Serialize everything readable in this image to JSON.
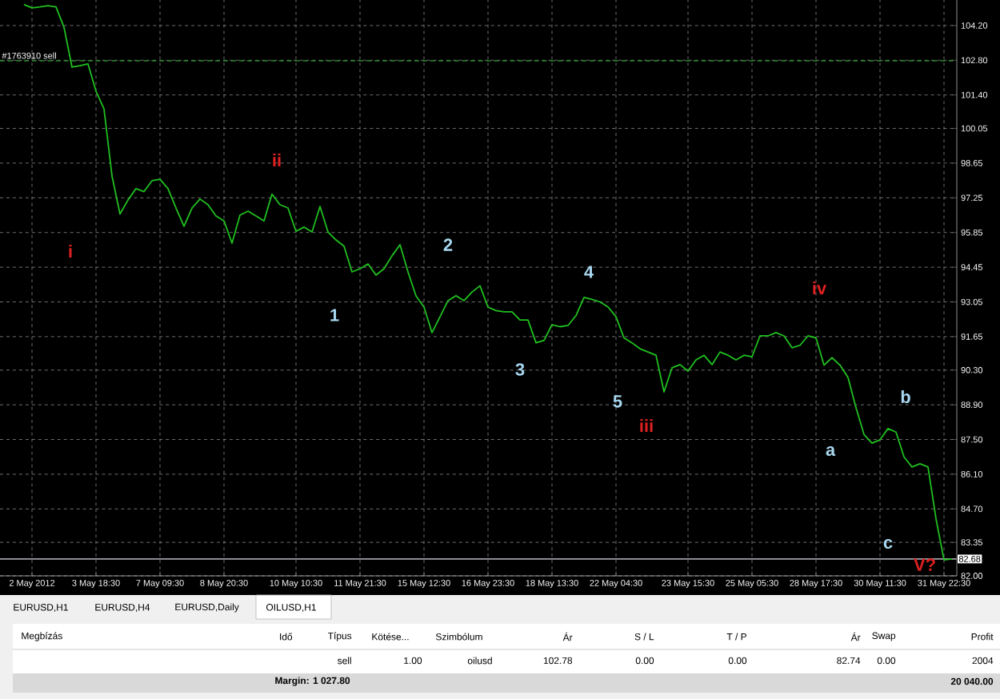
{
  "chart_data": {
    "type": "line",
    "categories": [
      null,
      "2 May 2012",
      null,
      null,
      null,
      null,
      null,
      null,
      null,
      "3 May 18:30",
      null,
      null,
      null,
      null,
      null,
      null,
      null,
      "7 May 09:30",
      null,
      null,
      null,
      null,
      null,
      null,
      null,
      "8 May 20:30",
      null,
      null,
      null,
      null,
      null,
      null,
      null,
      null,
      "10 May 10:30",
      null,
      null,
      null,
      null,
      null,
      null,
      null,
      "11 May 21:30",
      null,
      null,
      null,
      null,
      null,
      null,
      null,
      "15 May 12:30",
      null,
      null,
      null,
      null,
      null,
      null,
      null,
      "16 May 23:30",
      null,
      null,
      null,
      null,
      null,
      null,
      null,
      "18 May 13:30",
      null,
      null,
      null,
      null,
      null,
      null,
      null,
      "22 May 04:30",
      null,
      null,
      null,
      null,
      null,
      null,
      null,
      null,
      "23 May 15:30",
      null,
      null,
      null,
      null,
      null,
      null,
      null,
      "25 May 05:30",
      null,
      null,
      null,
      null,
      null,
      null,
      null,
      "28 May 17:30",
      null,
      null,
      null,
      null,
      null,
      null,
      null,
      "30 May 11:30",
      null,
      null,
      null,
      null,
      null,
      null,
      null,
      "31 May 22:30",
      null
    ],
    "series": [
      {
        "color": "#20c020",
        "values": [
          105.05,
          104.91,
          104.95,
          105.0,
          104.95,
          104.13,
          102.52,
          102.58,
          102.65,
          101.55,
          100.84,
          98.13,
          96.6,
          97.16,
          97.62,
          97.5,
          97.94,
          98.0,
          97.62,
          96.84,
          96.1,
          96.84,
          97.2,
          96.97,
          96.52,
          96.32,
          95.42,
          96.55,
          96.71,
          96.52,
          96.32,
          97.4,
          96.97,
          96.84,
          95.9,
          96.07,
          95.87,
          96.9,
          95.87,
          95.55,
          95.3,
          94.26,
          94.39,
          94.58,
          94.13,
          94.39,
          94.91,
          95.36,
          94.26,
          93.29,
          92.84,
          91.81,
          92.45,
          93.1,
          93.3,
          93.1,
          93.45,
          93.7,
          92.84,
          92.7,
          92.65,
          92.65,
          92.32,
          92.32,
          91.4,
          91.5,
          92.13,
          92.05,
          92.1,
          92.5,
          93.23,
          93.15,
          93.05,
          92.85,
          92.45,
          91.6,
          91.4,
          91.16,
          91.03,
          90.9,
          89.42,
          90.39,
          90.52,
          90.26,
          90.71,
          90.9,
          90.52,
          91.03,
          90.9,
          90.71,
          90.9,
          90.84,
          91.68,
          91.68,
          91.81,
          91.68,
          91.2,
          91.3,
          91.68,
          91.6,
          90.5,
          90.8,
          90.5,
          90.0,
          88.78,
          87.7,
          87.35,
          87.49,
          87.94,
          87.8,
          86.8,
          86.39,
          86.52,
          86.39,
          84.3,
          82.64,
          82.68
        ]
      }
    ],
    "ylim": [
      82.0,
      105.23
    ],
    "yticks": [
      {
        "value": 82.0,
        "label": "82.00"
      },
      {
        "value": 83.35,
        "label": "83.35"
      },
      {
        "value": 84.7,
        "label": "84.70"
      },
      {
        "value": 86.1,
        "label": "86.10"
      },
      {
        "value": 87.5,
        "label": "87.50"
      },
      {
        "value": 88.9,
        "label": "88.90"
      },
      {
        "value": 90.3,
        "label": "90.30"
      },
      {
        "value": 91.65,
        "label": "91.65"
      },
      {
        "value": 93.05,
        "label": "93.05"
      },
      {
        "value": 94.45,
        "label": "94.45"
      },
      {
        "value": 95.85,
        "label": "95.85"
      },
      {
        "value": 97.25,
        "label": "97.25"
      },
      {
        "value": 98.65,
        "label": "98.65"
      },
      {
        "value": 100.05,
        "label": "100.05"
      },
      {
        "value": 101.4,
        "label": "101.40"
      },
      {
        "value": 102.8,
        "label": "102.80"
      },
      {
        "value": 104.2,
        "label": "104.20"
      }
    ],
    "grid": true,
    "ref_lines": [
      {
        "axis": "y",
        "value": 102.78,
        "label": "#1763910 sell",
        "color": "#2e8b2e",
        "line_style": "dashed"
      },
      {
        "axis": "y",
        "value": 82.68,
        "label": "82.68",
        "color": "#a0a0a8",
        "line_style": "solid"
      }
    ],
    "annotations": [
      "i",
      "ii",
      "1",
      "2",
      "3",
      "4",
      "5",
      "iii",
      "iv",
      "a",
      "b",
      "c",
      "V?",
      "EURUSD,H1",
      "EURUSD,H4",
      "EURUSD,Daily",
      "OILUSD,H1",
      "Megbízás",
      "Idő",
      "Típus",
      "Kötése...",
      "Szimbólum",
      "Ár",
      "S / L",
      "T / P",
      "Ár",
      "Swap",
      "Profit",
      "sell",
      "1.00",
      "oilusd",
      "102.78",
      "0.00",
      "0.00",
      "82.74",
      "0.00",
      "2004",
      "Margin: 1 027.80",
      "20 040.00"
    ]
  }
}
